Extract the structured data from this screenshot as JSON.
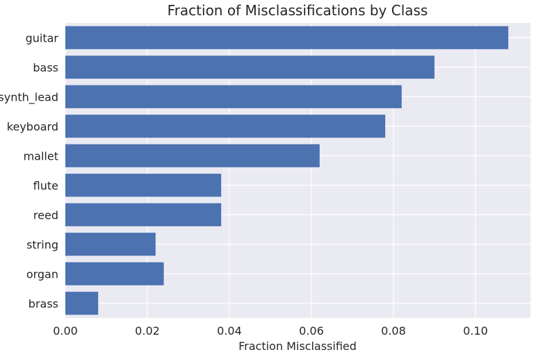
{
  "chart_data": {
    "type": "bar",
    "orientation": "horizontal",
    "title": "Fraction of Misclassifications by Class",
    "xlabel": "Fraction Misclassified",
    "ylabel": "",
    "categories": [
      "guitar",
      "bass",
      "synth_lead",
      "keyboard",
      "mallet",
      "flute",
      "reed",
      "string",
      "organ",
      "brass"
    ],
    "values": [
      0.108,
      0.09,
      0.082,
      0.078,
      0.062,
      0.038,
      0.038,
      0.022,
      0.024,
      0.008
    ],
    "xlim": [
      0.0,
      0.1134
    ],
    "xticks": [
      0.0,
      0.02,
      0.04,
      0.06,
      0.08,
      0.1
    ],
    "xtick_labels": [
      "0.00",
      "0.02",
      "0.04",
      "0.06",
      "0.08",
      "0.10"
    ],
    "grid": true,
    "legend": "none",
    "colors": {
      "bar": "#4c72b0",
      "background": "#eaeaf2",
      "grid": "#ffffff"
    }
  }
}
